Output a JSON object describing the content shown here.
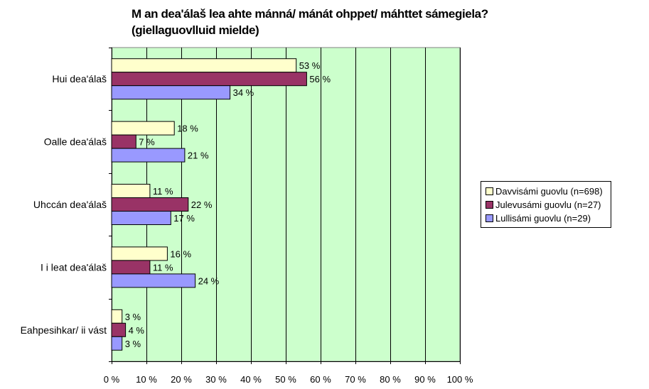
{
  "chart_data": {
    "type": "bar",
    "orientation": "horizontal",
    "title_lines": [
      "M an dea'álaš lea ahte mánná/ mánát ohppet/ máhttet sámegiela?",
      "(giellaguovlluid mielde)"
    ],
    "categories": [
      "Hui dea'álaš",
      "Oalle dea'álaš",
      "Uhccán dea'álaš",
      "I i leat dea'álaš",
      "Eahpesihkar/ ii vást"
    ],
    "series": [
      {
        "name": "Davvisámi guovlu (n=698)",
        "values": [
          53,
          18,
          11,
          16,
          3
        ],
        "color": "#FFFFCC"
      },
      {
        "name": "Julevusámi guovlu (n=27)",
        "values": [
          56,
          7,
          22,
          11,
          4
        ],
        "color": "#993366"
      },
      {
        "name": "Lullisámi guovlu (n=29)",
        "values": [
          34,
          21,
          17,
          24,
          3
        ],
        "color": "#9999FF"
      }
    ],
    "value_suffix": " %",
    "xlim": [
      0,
      100
    ],
    "x_ticks": [
      "0 %",
      "10 %",
      "20 %",
      "30 %",
      "40 %",
      "50 %",
      "60 %",
      "70 %",
      "80 %",
      "90 %",
      "100 %"
    ],
    "plot_background": "#CCFFCC",
    "gridlines": true,
    "legend_position": "right"
  }
}
